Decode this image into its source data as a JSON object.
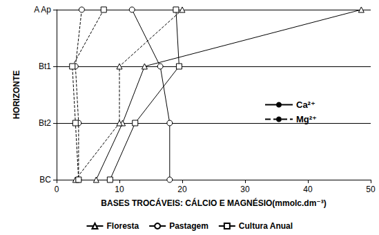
{
  "chart_data": {
    "type": "line",
    "x_label": "BASES TROCÁVEIS: CÁLCIO E MAGNÉSIO(mmolc.dm⁻³)",
    "y_label": "HORIZONTE",
    "categories": [
      "A Ap",
      "Bt1",
      "Bt2",
      "BC"
    ],
    "xlim": [
      0,
      50
    ],
    "xticks": [
      0,
      10,
      20,
      30,
      40,
      50
    ],
    "grid": true,
    "legend": "bottom",
    "ions": [
      {
        "name": "Ca²⁺",
        "line_style": "solid",
        "color": "#000000"
      },
      {
        "name": "Mg²⁺",
        "line_style": "dashed",
        "color": "#000000"
      }
    ],
    "series": [
      {
        "name": "Floresta",
        "ion": "Ca²⁺",
        "marker": "triangle",
        "line_style": "solid",
        "color": "#000000",
        "values": [
          48.5,
          14,
          10.5,
          6.3
        ]
      },
      {
        "name": "Pastagem",
        "ion": "Ca²⁺",
        "marker": "circle",
        "line_style": "solid",
        "color": "#000000",
        "values": [
          12,
          16.5,
          18,
          18
        ]
      },
      {
        "name": "Cultura Anual",
        "ion": "Ca²⁺",
        "marker": "rect",
        "line_style": "solid",
        "color": "#000000",
        "values": [
          19,
          19.5,
          12.5,
          8.5
        ]
      },
      {
        "name": "Floresta",
        "ion": "Mg²⁺",
        "marker": "triangle",
        "line_style": "dashed",
        "color": "#000000",
        "values": [
          20,
          10,
          10,
          3
        ]
      },
      {
        "name": "Pastagem",
        "ion": "Mg²⁺",
        "marker": "circle",
        "line_style": "dashed",
        "color": "#000000",
        "values": [
          4,
          3,
          3.5,
          3.5
        ]
      },
      {
        "name": "Cultura Anual",
        "ion": "Mg²⁺",
        "marker": "rect",
        "line_style": "dashed",
        "color": "#000000",
        "values": [
          7.5,
          2.5,
          3,
          3.5
        ]
      }
    ]
  }
}
